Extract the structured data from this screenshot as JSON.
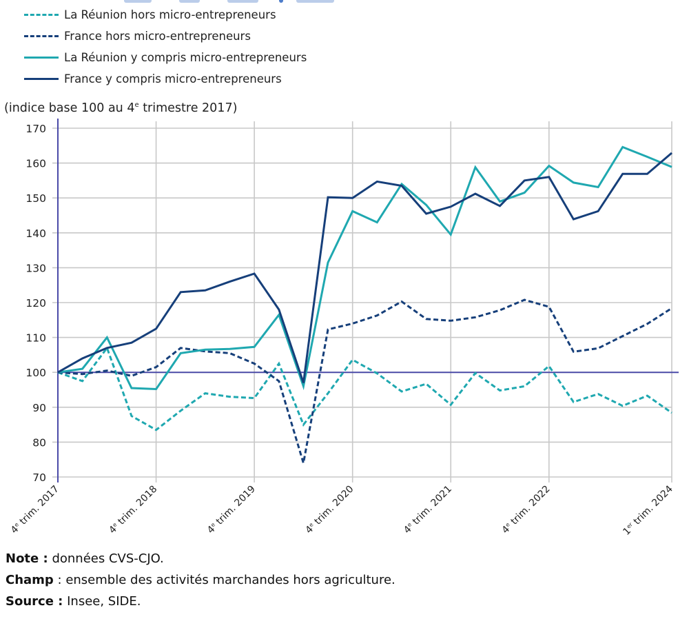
{
  "colors": {
    "reunion": "#1fa8b0",
    "france": "#163f7a",
    "reference_line": "#4a4aa8",
    "axis": "#4a4aa8",
    "grid": "#c8c8c8"
  },
  "legend": [
    {
      "label": "La Réunion hors micro-entrepreneurs",
      "color": "#1fa8b0",
      "style": "dashed"
    },
    {
      "label": "France hors micro-entrepreneurs",
      "color": "#163f7a",
      "style": "dashed"
    },
    {
      "label": "La Réunion y compris micro-entrepreneurs",
      "color": "#1fa8b0",
      "style": "solid"
    },
    {
      "label": "France y compris micro-entrepreneurs",
      "color": "#163f7a",
      "style": "solid"
    }
  ],
  "footnotes": {
    "note_label": "Note :",
    "note_text": " données CVS-CJO.",
    "champ_label": "Champ",
    "champ_text": " : ensemble des activités marchandes hors agriculture.",
    "source_label": "Source :",
    "source_text": " Insee, SIDE."
  },
  "chart_data": {
    "type": "line",
    "title": "",
    "ylabel_prefix": "(indice base 100 au 4",
    "ylabel_sup": "e",
    "ylabel_suffix": " trimestre 2017)",
    "xlabel": "",
    "ylim": [
      70,
      170
    ],
    "yticks": [
      70,
      80,
      90,
      100,
      110,
      120,
      130,
      140,
      150,
      160,
      170
    ],
    "reference_value": 100,
    "grid": true,
    "legend_position": "top-left",
    "x": [
      "T4 2017",
      "T1 2018",
      "T2 2018",
      "T3 2018",
      "T4 2018",
      "T1 2019",
      "T2 2019",
      "T3 2019",
      "T4 2019",
      "T1 2020",
      "T2 2020",
      "T3 2020",
      "T4 2020",
      "T1 2021",
      "T2 2021",
      "T3 2021",
      "T4 2021",
      "T1 2022",
      "T2 2022",
      "T3 2022",
      "T4 2022",
      "T1 2023",
      "T2 2023",
      "T3 2023",
      "T4 2023",
      "T1 2024"
    ],
    "xtick_labels": [
      {
        "index": 0,
        "num": "4",
        "sup": "e",
        "rest": " trim. 2017"
      },
      {
        "index": 4,
        "num": "4",
        "sup": "e",
        "rest": " trim. 2018"
      },
      {
        "index": 8,
        "num": "4",
        "sup": "e",
        "rest": " trim. 2019"
      },
      {
        "index": 12,
        "num": "4",
        "sup": "e",
        "rest": " trim. 2020"
      },
      {
        "index": 16,
        "num": "4",
        "sup": "e",
        "rest": " trim. 2021"
      },
      {
        "index": 20,
        "num": "4",
        "sup": "e",
        "rest": " trim. 2022"
      },
      {
        "index": 25,
        "num": "1",
        "sup": "er",
        "rest": " trim. 2024"
      }
    ],
    "series": [
      {
        "name": "La Réunion hors micro-entrepreneurs",
        "color": "#1fa8b0",
        "style": "dashed",
        "values": [
          100,
          97.5,
          107,
          87.5,
          83.5,
          89,
          94,
          93,
          92.6,
          102.5,
          85,
          94,
          103.6,
          99.7,
          94.5,
          96.7,
          90.7,
          99.8,
          94.8,
          96,
          101.8,
          91.5,
          93.8,
          90.4,
          93.3,
          88.4
        ]
      },
      {
        "name": "France hors micro-entrepreneurs",
        "color": "#163f7a",
        "style": "dashed",
        "values": [
          100,
          99.5,
          100.5,
          99,
          101.5,
          107,
          106,
          105.5,
          102.5,
          97.5,
          74,
          112.3,
          114,
          116.3,
          120.3,
          115.3,
          114.8,
          115.8,
          117.8,
          120.8,
          118.8,
          105.9,
          106.9,
          110.4,
          113.9,
          118.4
        ]
      },
      {
        "name": "La Réunion y compris micro-entrepreneurs",
        "color": "#1fa8b0",
        "style": "solid",
        "values": [
          100,
          101,
          110,
          95.5,
          95.2,
          105.5,
          106.5,
          106.7,
          107.3,
          116.5,
          96,
          131.5,
          146.2,
          143,
          154,
          148,
          139.5,
          158.8,
          149,
          151.5,
          159.2,
          154.4,
          153.1,
          164.6,
          161.8,
          158.9
        ]
      },
      {
        "name": "France y compris micro-entrepreneurs",
        "color": "#163f7a",
        "style": "solid",
        "values": [
          100,
          104,
          107,
          108.5,
          112.5,
          123,
          123.5,
          126,
          128.3,
          118,
          97,
          150.2,
          150,
          154.7,
          153.5,
          145.5,
          147.5,
          151.2,
          147.7,
          155,
          156,
          143.9,
          146.2,
          156.9,
          156.9,
          162.9
        ]
      }
    ]
  }
}
